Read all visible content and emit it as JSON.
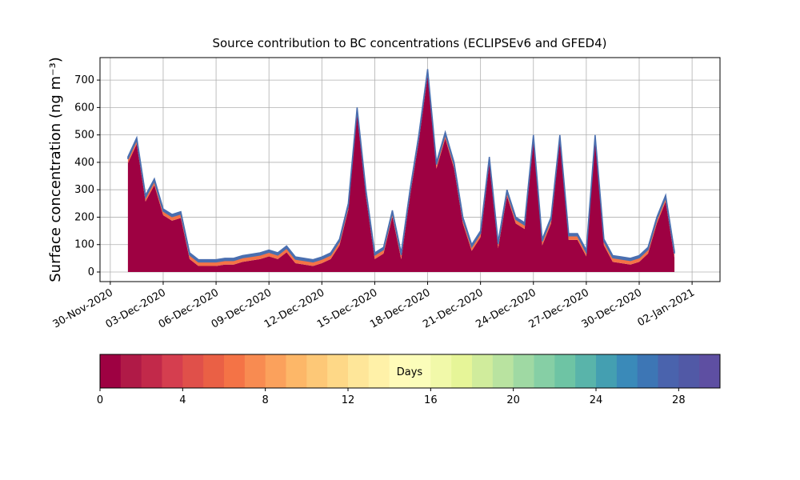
{
  "chart_data": {
    "type": "stacked-area",
    "title": "Source contribution to BC concentrations (ECLIPSEv6 and GFED4)",
    "ylabel": "Surface concentration (ng m⁻³)",
    "x": [
      "2020-12-01T00:00",
      "2020-12-01T12:00",
      "2020-12-02T00:00",
      "2020-12-02T12:00",
      "2020-12-03T00:00",
      "2020-12-03T12:00",
      "2020-12-04T00:00",
      "2020-12-04T12:00",
      "2020-12-05T00:00",
      "2020-12-05T12:00",
      "2020-12-06T00:00",
      "2020-12-06T12:00",
      "2020-12-07T00:00",
      "2020-12-07T12:00",
      "2020-12-08T00:00",
      "2020-12-08T12:00",
      "2020-12-09T00:00",
      "2020-12-09T12:00",
      "2020-12-10T00:00",
      "2020-12-10T12:00",
      "2020-12-11T00:00",
      "2020-12-11T12:00",
      "2020-12-12T00:00",
      "2020-12-12T12:00",
      "2020-12-13T00:00",
      "2020-12-13T12:00",
      "2020-12-14T00:00",
      "2020-12-14T12:00",
      "2020-12-15T00:00",
      "2020-12-15T12:00",
      "2020-12-16T00:00",
      "2020-12-16T12:00",
      "2020-12-17T00:00",
      "2020-12-17T12:00",
      "2020-12-18T00:00",
      "2020-12-18T12:00",
      "2020-12-19T00:00",
      "2020-12-19T12:00",
      "2020-12-20T00:00",
      "2020-12-20T12:00",
      "2020-12-21T00:00",
      "2020-12-21T12:00",
      "2020-12-22T00:00",
      "2020-12-22T12:00",
      "2020-12-23T00:00",
      "2020-12-23T12:00",
      "2020-12-24T00:00",
      "2020-12-24T12:00",
      "2020-12-25T00:00",
      "2020-12-25T12:00",
      "2020-12-26T00:00",
      "2020-12-26T12:00",
      "2020-12-27T00:00",
      "2020-12-27T12:00",
      "2020-12-28T00:00",
      "2020-12-28T12:00",
      "2020-12-29T00:00",
      "2020-12-29T12:00",
      "2020-12-30T00:00",
      "2020-12-30T12:00",
      "2020-12-31T00:00",
      "2020-12-31T12:00",
      "2021-01-01T00:00"
    ],
    "series": [
      {
        "color": "#9e0142",
        "values": [
          397,
          467,
          257,
          317,
          207,
          187,
          197,
          47,
          22,
          22,
          22,
          27,
          27,
          37,
          42,
          47,
          57,
          47,
          72,
          32,
          27,
          22,
          32,
          47,
          97,
          227,
          577,
          277,
          47,
          67,
          202,
          47,
          277,
          477,
          717,
          377,
          487,
          377,
          177,
          77,
          127,
          397,
          87,
          277,
          177,
          157,
          477,
          97,
          177,
          477,
          117,
          117,
          57,
          477,
          97,
          37,
          32,
          27,
          37,
          67,
          177,
          257,
          52
        ]
      },
      {
        "color": "#f47346",
        "values": [
          15,
          15,
          15,
          15,
          15,
          15,
          15,
          15,
          15,
          15,
          15,
          15,
          15,
          15,
          15,
          15,
          15,
          15,
          15,
          15,
          15,
          15,
          15,
          15,
          15,
          15,
          15,
          15,
          15,
          15,
          15,
          15,
          15,
          15,
          15,
          15,
          15,
          15,
          15,
          15,
          15,
          15,
          15,
          15,
          15,
          15,
          15,
          15,
          15,
          15,
          15,
          15,
          15,
          15,
          15,
          15,
          15,
          15,
          15,
          15,
          15,
          15,
          15
        ]
      },
      {
        "color": "#4a6fb0",
        "values": [
          8,
          8,
          8,
          8,
          8,
          8,
          8,
          8,
          8,
          8,
          8,
          8,
          8,
          8,
          8,
          8,
          8,
          8,
          8,
          8,
          8,
          8,
          8,
          8,
          8,
          8,
          8,
          8,
          8,
          8,
          8,
          8,
          8,
          8,
          8,
          8,
          8,
          8,
          8,
          8,
          8,
          8,
          8,
          8,
          8,
          8,
          8,
          8,
          8,
          8,
          8,
          8,
          8,
          8,
          8,
          8,
          8,
          8,
          8,
          8,
          8,
          8,
          8
        ]
      }
    ],
    "xlim": [
      "2020-11-29T10:00",
      "2021-01-03T14:00"
    ],
    "xticks": [
      {
        "value": "2020-11-30",
        "label": "30-Nov-2020"
      },
      {
        "value": "2020-12-03",
        "label": "03-Dec-2020"
      },
      {
        "value": "2020-12-06",
        "label": "06-Dec-2020"
      },
      {
        "value": "2020-12-09",
        "label": "09-Dec-2020"
      },
      {
        "value": "2020-12-12",
        "label": "12-Dec-2020"
      },
      {
        "value": "2020-12-15",
        "label": "15-Dec-2020"
      },
      {
        "value": "2020-12-18",
        "label": "18-Dec-2020"
      },
      {
        "value": "2020-12-21",
        "label": "21-Dec-2020"
      },
      {
        "value": "2020-12-24",
        "label": "24-Dec-2020"
      },
      {
        "value": "2020-12-27",
        "label": "27-Dec-2020"
      },
      {
        "value": "2020-12-30",
        "label": "30-Dec-2020"
      },
      {
        "value": "2021-01-02",
        "label": "02-Jan-2021"
      }
    ],
    "ylim": [
      -35,
      782
    ],
    "yticks": [
      0,
      100,
      200,
      300,
      400,
      500,
      600,
      700
    ],
    "grid": true,
    "colorbar": {
      "label": "Days",
      "range": [
        0,
        30
      ],
      "ticks": [
        0,
        4,
        8,
        12,
        16,
        20,
        24,
        28
      ],
      "colors": [
        "#9e0142",
        "#b01a47",
        "#c2294a",
        "#d53e4f",
        "#e0504a",
        "#ea6045",
        "#f47346",
        "#f88b51",
        "#fba15c",
        "#fdb768",
        "#fdc877",
        "#fed887",
        "#fee699",
        "#fff1a8",
        "#fffbb9",
        "#fbfdba",
        "#f1f9a9",
        "#e6f598",
        "#d0ec9c",
        "#b9e3a0",
        "#9fd9a3",
        "#86cfa5",
        "#6ec4a4",
        "#59b4aa",
        "#449fb1",
        "#3a8ab9",
        "#3d76b5",
        "#4a63ad",
        "#5159a6",
        "#5e4fa2"
      ]
    }
  }
}
